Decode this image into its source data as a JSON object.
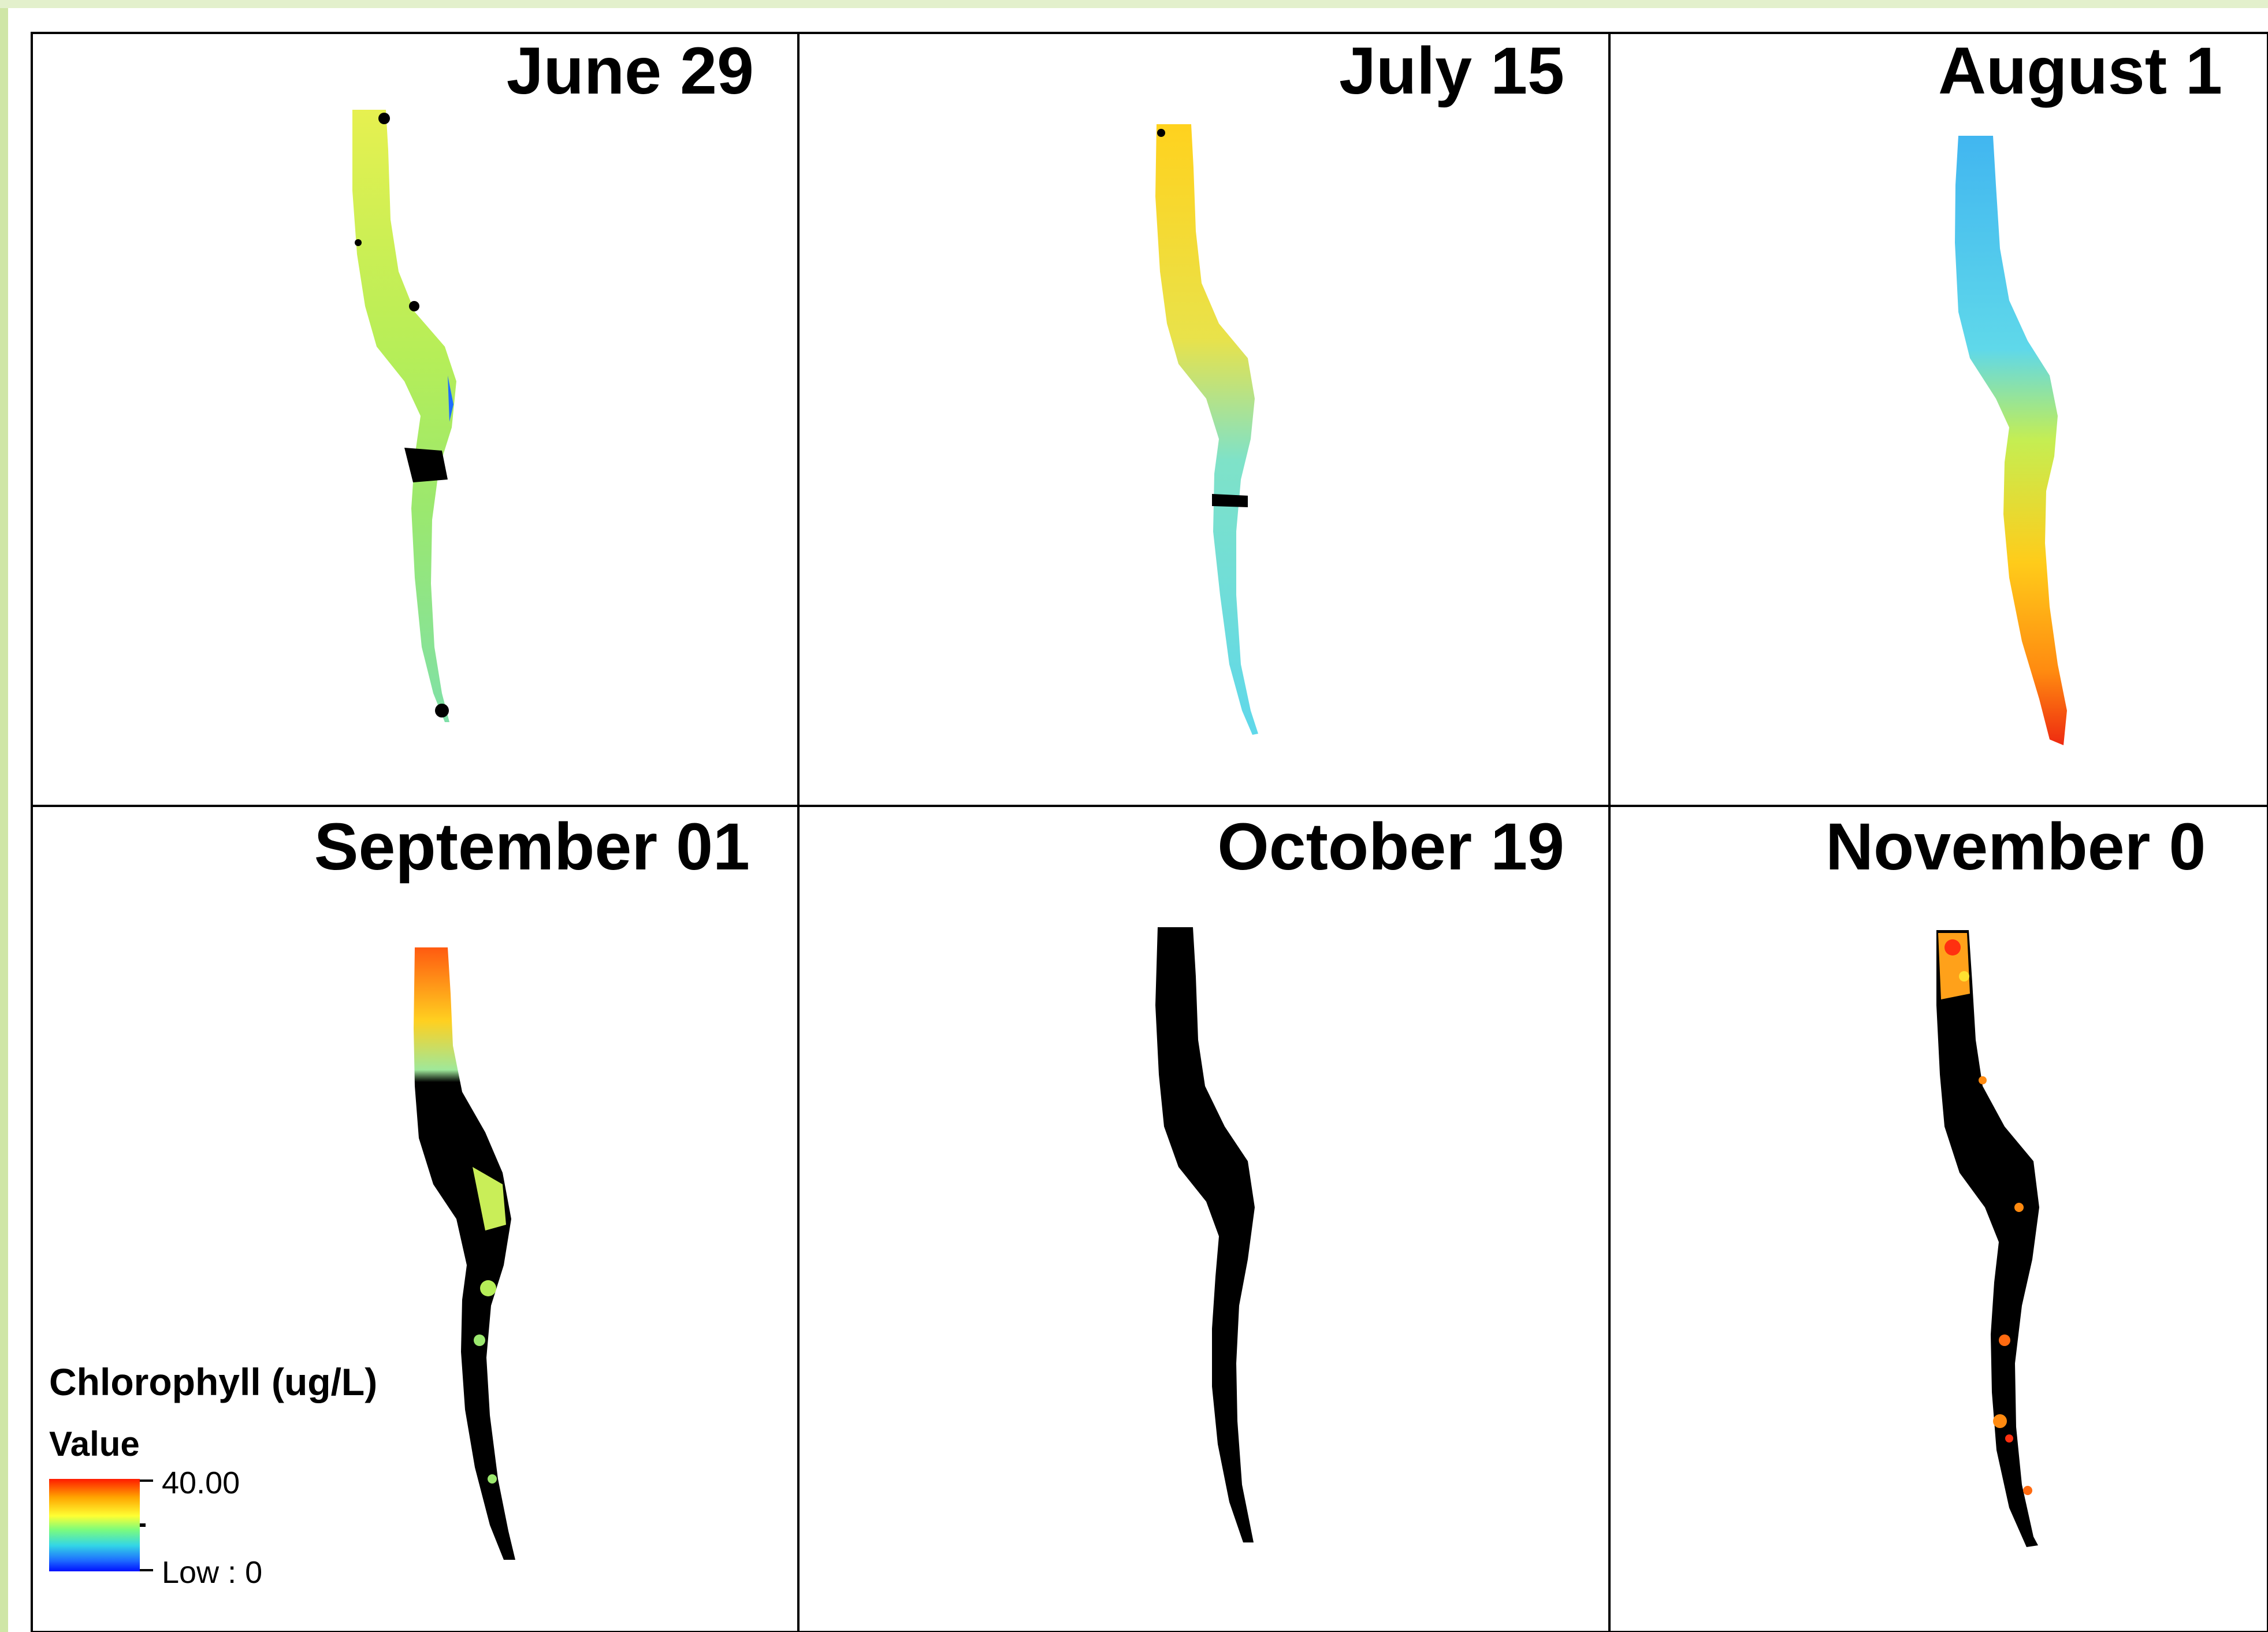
{
  "panels": [
    {
      "title": "June 29",
      "pattern": "yellow-green"
    },
    {
      "title": "July 15",
      "pattern": "yellow-top-cyan-bottom"
    },
    {
      "title": "August 1",
      "pattern": "cyan-top-red-bottom"
    },
    {
      "title": "September 01",
      "pattern": "yellow-top-black-bottom"
    },
    {
      "title": "October 19",
      "pattern": "all-black"
    },
    {
      "title": "November 0",
      "pattern": "black-with-orange-patches"
    }
  ],
  "legend": {
    "title": "Chlorophyll (ug/L)",
    "subtitle": "Value",
    "high_label": "40.00",
    "low_label": "Low : 0",
    "gradient_colors": [
      "#ff1a00",
      "#ffa500",
      "#ffff33",
      "#7cfc7c",
      "#33d6e6",
      "#1e6eff",
      "#0010ff"
    ]
  },
  "colors": {
    "left_border": "#cfe6a6",
    "grid_line": "#000000",
    "no_data": "#000000"
  }
}
